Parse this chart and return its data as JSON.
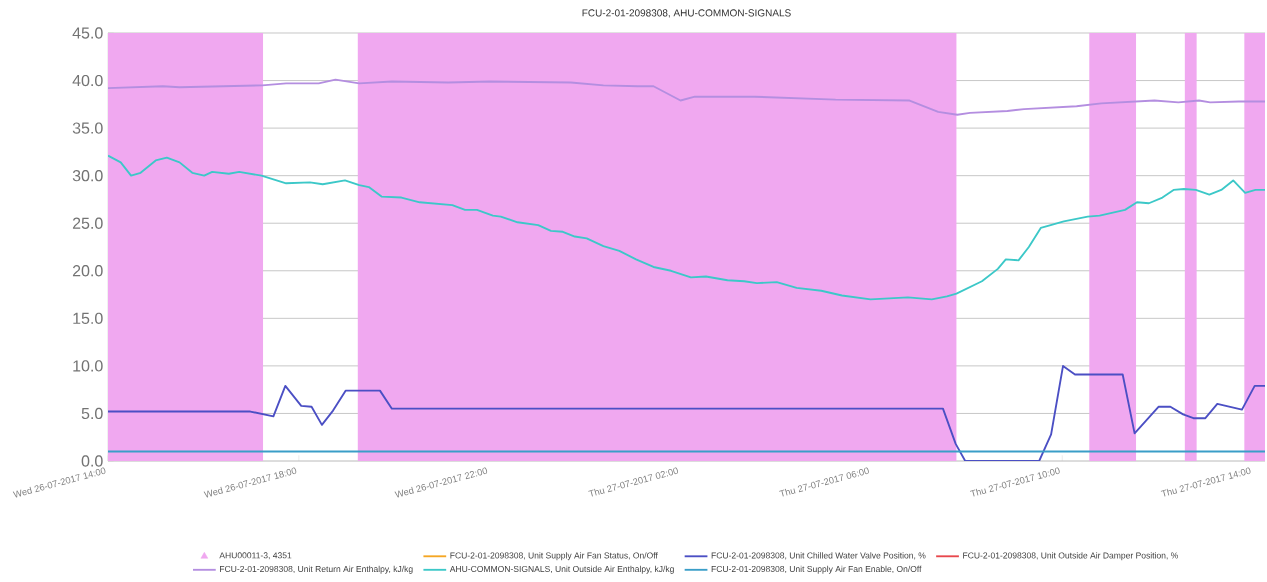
{
  "chart_data": {
    "type": "line",
    "title": "FCU-2-01-2098308, AHU-COMMON-SIGNALS",
    "xlim": [
      "2017-07-26T14:00",
      "2017-07-27T14:15"
    ],
    "ylim": [
      0,
      45
    ],
    "xticks": [
      {
        "value": "2017-07-26T14:00",
        "label": "Wed 26-07-2017 14:00"
      },
      {
        "value": "2017-07-26T18:00",
        "label": "Wed 26-07-2017 18:00"
      },
      {
        "value": "2017-07-26T22:00",
        "label": "Wed 26-07-2017 22:00"
      },
      {
        "value": "2017-07-27T02:00",
        "label": "Thu 27-07-2017 02:00"
      },
      {
        "value": "2017-07-27T06:00",
        "label": "Thu 27-07-2017 06:00"
      },
      {
        "value": "2017-07-27T10:00",
        "label": "Thu 27-07-2017 10:00"
      },
      {
        "value": "2017-07-27T14:00",
        "label": "Thu 27-07-2017 14:00"
      }
    ],
    "yticks": [
      {
        "value": 0,
        "label": "0.0"
      },
      {
        "value": 5,
        "label": "5.0"
      },
      {
        "value": 10,
        "label": "10.0"
      },
      {
        "value": 15,
        "label": "15.0"
      },
      {
        "value": 20,
        "label": "20.0"
      },
      {
        "value": 25,
        "label": "25.0"
      },
      {
        "value": 30,
        "label": "30.0"
      },
      {
        "value": 35,
        "label": "35.0"
      },
      {
        "value": 40,
        "label": "40.0"
      },
      {
        "value": 45,
        "label": "45.0"
      }
    ],
    "grid": "y",
    "legend": "bottom",
    "marker": "none",
    "line_style": "solid",
    "bands": [
      {
        "axis": "x",
        "from": "2017-07-26T14:00",
        "to": "2017-07-26T17:15",
        "label": "AHU00011-3, 4351",
        "color": "#f0a8f0"
      },
      {
        "axis": "x",
        "from": "2017-07-26T19:14",
        "to": "2017-07-27T07:47",
        "color": "#f0a8f0"
      },
      {
        "axis": "x",
        "from": "2017-07-27T10:34",
        "to": "2017-07-27T11:33",
        "color": "#f0a8f0"
      },
      {
        "axis": "x",
        "from": "2017-07-27T12:34",
        "to": "2017-07-27T12:49",
        "color": "#f0a8f0"
      },
      {
        "axis": "x",
        "from": "2017-07-27T13:49",
        "to": "2017-07-27T14:15",
        "color": "#f0a8f0"
      }
    ],
    "series": [
      {
        "name": "FCU-2-01-2098308, Unit Supply Air Fan Status, On/Off",
        "color": "#f5a623"
      },
      {
        "name": "FCU-2-01-2098308, Unit Chilled Water Valve Position, %",
        "color": "#4b4fc4",
        "x": [
          "2017-07-26T14:00",
          "2017-07-26T16:59",
          "2017-07-26T17:28",
          "2017-07-26T17:43",
          "2017-07-26T18:03",
          "2017-07-26T18:16",
          "2017-07-26T18:29",
          "2017-07-26T18:43",
          "2017-07-26T18:59",
          "2017-07-26T19:42",
          "2017-07-26T19:57",
          "2017-07-27T07:30",
          "2017-07-27T07:46",
          "2017-07-27T07:58",
          "2017-07-27T09:31",
          "2017-07-27T09:46",
          "2017-07-27T10:01",
          "2017-07-27T10:16",
          "2017-07-27T11:16",
          "2017-07-27T11:31",
          "2017-07-27T12:01",
          "2017-07-27T12:16",
          "2017-07-27T12:32",
          "2017-07-27T12:45",
          "2017-07-27T13:00",
          "2017-07-27T13:15",
          "2017-07-27T13:46",
          "2017-07-27T14:02",
          "2017-07-27T14:15"
        ],
        "values": [
          5.2,
          5.2,
          4.7,
          7.9,
          5.8,
          5.7,
          3.8,
          5.3,
          7.4,
          7.4,
          5.5,
          5.5,
          1.8,
          0,
          0,
          2.8,
          10.0,
          9.1,
          9.1,
          2.9,
          5.7,
          5.7,
          4.9,
          4.5,
          4.5,
          6.0,
          5.4,
          7.9,
          7.9
        ]
      },
      {
        "name": "FCU-2-01-2098308, Unit Outside Air Damper Position, %",
        "color": "#e8474c"
      },
      {
        "name": "FCU-2-01-2098308, Unit Return Air Enthalpy, kJ/kg",
        "color": "#b48ee0",
        "x": [
          "2017-07-26T14:00",
          "2017-07-26T15:09",
          "2017-07-26T15:30",
          "2017-07-26T17:14",
          "2017-07-26T17:44",
          "2017-07-26T18:25",
          "2017-07-26T18:46",
          "2017-07-26T19:16",
          "2017-07-26T19:57",
          "2017-07-26T21:08",
          "2017-07-26T22:00",
          "2017-07-26T23:42",
          "2017-07-27T00:23",
          "2017-07-27T01:06",
          "2017-07-27T01:26",
          "2017-07-27T02:00",
          "2017-07-27T02:18",
          "2017-07-27T03:33",
          "2017-07-27T05:15",
          "2017-07-27T06:48",
          "2017-07-27T07:24",
          "2017-07-27T07:48",
          "2017-07-27T08:04",
          "2017-07-27T08:51",
          "2017-07-27T09:12",
          "2017-07-27T10:18",
          "2017-07-27T10:49",
          "2017-07-27T11:56",
          "2017-07-27T12:26",
          "2017-07-27T12:52",
          "2017-07-27T13:06",
          "2017-07-27T13:42",
          "2017-07-27T14:15"
        ],
        "values": [
          39.2,
          39.4,
          39.3,
          39.5,
          39.7,
          39.7,
          40.1,
          39.7,
          39.9,
          39.8,
          39.9,
          39.8,
          39.5,
          39.4,
          39.4,
          37.9,
          38.3,
          38.3,
          38.0,
          37.9,
          36.7,
          36.4,
          36.6,
          36.8,
          37.0,
          37.3,
          37.6,
          37.9,
          37.7,
          37.9,
          37.7,
          37.8,
          37.8
        ]
      },
      {
        "name": "AHU-COMMON-SIGNALS, Unit Outside Air Enthalpy, kJ/kg",
        "color": "#3cc8c8",
        "x": [
          "2017-07-26T14:00",
          "2017-07-26T14:16",
          "2017-07-26T14:29",
          "2017-07-26T14:41",
          "2017-07-26T15:00",
          "2017-07-26T15:14",
          "2017-07-26T15:30",
          "2017-07-26T15:46",
          "2017-07-26T16:01",
          "2017-07-26T16:11",
          "2017-07-26T16:32",
          "2017-07-26T16:45",
          "2017-07-26T17:13",
          "2017-07-26T17:44",
          "2017-07-26T18:14",
          "2017-07-26T18:30",
          "2017-07-26T18:58",
          "2017-07-26T19:16",
          "2017-07-26T19:28",
          "2017-07-26T19:44",
          "2017-07-26T20:09",
          "2017-07-26T20:32",
          "2017-07-26T21:13",
          "2017-07-26T21:29",
          "2017-07-26T21:44",
          "2017-07-26T22:04",
          "2017-07-26T22:14",
          "2017-07-26T22:35",
          "2017-07-26T23:01",
          "2017-07-26T23:17",
          "2017-07-26T23:32",
          "2017-07-26T23:47",
          "2017-07-27T00:02",
          "2017-07-27T00:23",
          "2017-07-27T00:43",
          "2017-07-27T01:04",
          "2017-07-27T01:26",
          "2017-07-27T01:48",
          "2017-07-27T02:13",
          "2017-07-27T02:32",
          "2017-07-27T02:59",
          "2017-07-27T03:20",
          "2017-07-27T03:36",
          "2017-07-27T04:01",
          "2017-07-27T04:26",
          "2017-07-27T04:57",
          "2017-07-27T05:23",
          "2017-07-27T05:59",
          "2017-07-27T06:46",
          "2017-07-27T07:16",
          "2017-07-27T07:35",
          "2017-07-27T07:47",
          "2017-07-27T08:19",
          "2017-07-27T08:39",
          "2017-07-27T08:49",
          "2017-07-27T09:05",
          "2017-07-27T09:18",
          "2017-07-27T09:33",
          "2017-07-27T09:41",
          "2017-07-27T10:02",
          "2017-07-27T10:32",
          "2017-07-27T10:47",
          "2017-07-27T11:19",
          "2017-07-27T11:34",
          "2017-07-27T11:49",
          "2017-07-27T12:06",
          "2017-07-27T12:20",
          "2017-07-27T12:33",
          "2017-07-27T12:48",
          "2017-07-27T13:05",
          "2017-07-27T13:20",
          "2017-07-27T13:35",
          "2017-07-27T13:50",
          "2017-07-27T14:03",
          "2017-07-27T14:15"
        ],
        "values": [
          32.1,
          31.4,
          30.0,
          30.3,
          31.6,
          31.9,
          31.4,
          30.3,
          30.0,
          30.4,
          30.2,
          30.4,
          30.0,
          29.2,
          29.3,
          29.1,
          29.5,
          29.0,
          28.8,
          27.8,
          27.7,
          27.2,
          26.9,
          26.4,
          26.4,
          25.8,
          25.7,
          25.1,
          24.8,
          24.2,
          24.1,
          23.6,
          23.4,
          22.6,
          22.1,
          21.2,
          20.4,
          20.0,
          19.3,
          19.4,
          19.0,
          18.9,
          18.7,
          18.8,
          18.2,
          17.9,
          17.4,
          17.0,
          17.2,
          17.0,
          17.3,
          17.6,
          18.9,
          20.2,
          21.2,
          21.1,
          22.5,
          24.5,
          24.7,
          25.2,
          25.7,
          25.8,
          26.4,
          27.2,
          27.1,
          27.7,
          28.5,
          28.6,
          28.5,
          28.0,
          28.5,
          29.5,
          28.2,
          28.5,
          28.5
        ]
      },
      {
        "name": "FCU-2-01-2098308, Unit Supply Air Fan Enable, On/Off",
        "color": "#3a9ec8",
        "x": [
          "2017-07-26T14:00",
          "2017-07-27T14:15"
        ],
        "values": [
          1,
          1
        ]
      }
    ]
  }
}
